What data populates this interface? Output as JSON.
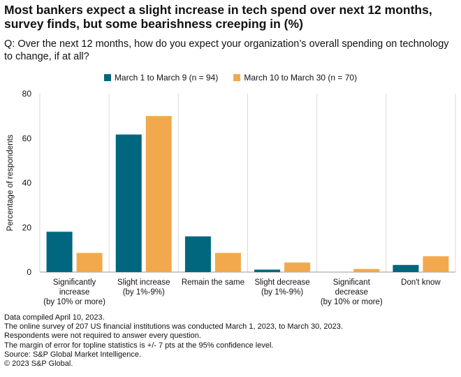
{
  "header": {
    "title": "Most bankers expect a slight increase in tech spend over next 12 months, survey finds, but some bearishness creeping in (%)",
    "subtitle": "Q: Over the next 12 months, how do you expect your organization’s overall spending on technology to change, if at all?"
  },
  "colors": {
    "series1": "#00677f",
    "series2": "#f2a94e",
    "grid": "#d9d9d9",
    "axis": "#999999"
  },
  "chart_data": {
    "type": "bar",
    "title": "Most bankers expect a slight increase in tech spend over next 12 months, survey finds, but some bearishness creeping in (%)",
    "xlabel": "",
    "ylabel": "Percentage of respondents",
    "ylim": [
      0,
      80
    ],
    "yticks": [
      0,
      20,
      40,
      60,
      80
    ],
    "grid": true,
    "legend_position": "top-center",
    "categories": [
      [
        "Significantly",
        "increase",
        "(by 10% or more)"
      ],
      [
        "Slight increase",
        "(by 1%-9%)"
      ],
      [
        "Remain the same"
      ],
      [
        "Slight decrease",
        "(by 1%-9%)"
      ],
      [
        "Significant",
        "decrease",
        "(by 10% or more)"
      ],
      [
        "Don't know"
      ]
    ],
    "series": [
      {
        "name": "March 1 to March  9 (n = 94)",
        "values": [
          18.1,
          61.7,
          16.0,
          1.1,
          0.0,
          3.2
        ]
      },
      {
        "name": "March 10 to March 30 (n = 70)",
        "values": [
          8.6,
          70.0,
          8.6,
          4.3,
          1.4,
          7.1
        ]
      }
    ]
  },
  "footnotes": [
    "Data compiled April 10, 2023.",
    "The online survey of 207 US financial institutions was conducted March 1, 2023, to March 30, 2023.",
    "Respondents were not required to answer every question.",
    "The margin of error for topline statistics is +/- 7 pts at the 95% confidence level.",
    "Source: S&P Global Market Intelligence.",
    "© 2023 S&P Global."
  ]
}
